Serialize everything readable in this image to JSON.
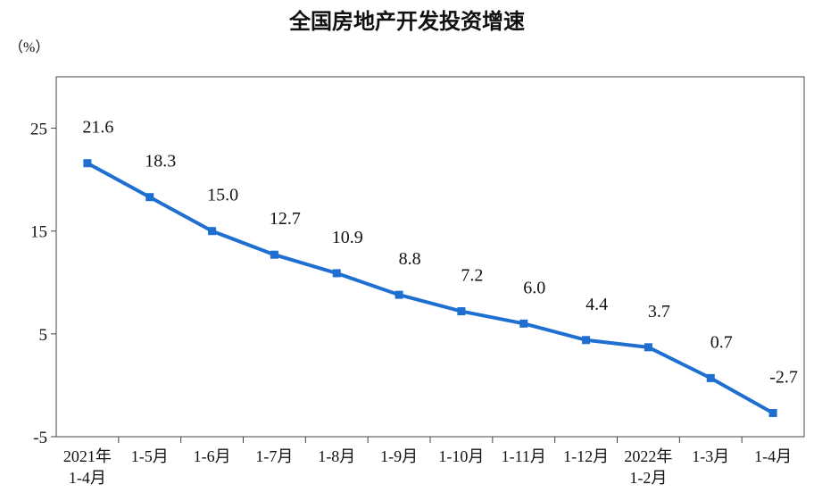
{
  "chart_data": {
    "type": "line",
    "title": "全国房地产开发投资增速",
    "unit_label": "（%）",
    "xlabel": "",
    "ylabel": "",
    "ylim": [
      -5,
      30
    ],
    "yticks": [
      -5,
      5,
      15,
      25
    ],
    "grid": false,
    "legend": "none",
    "categories": [
      [
        "2021年",
        "1-4月"
      ],
      [
        "1-5月"
      ],
      [
        "1-6月"
      ],
      [
        "1-7月"
      ],
      [
        "1-8月"
      ],
      [
        "1-9月"
      ],
      [
        "1-10月"
      ],
      [
        "1-11月"
      ],
      [
        "1-12月"
      ],
      [
        "2022年",
        "1-2月"
      ],
      [
        "1-3月"
      ],
      [
        "1-4月"
      ]
    ],
    "values": [
      21.6,
      18.3,
      15.0,
      12.7,
      10.9,
      8.8,
      7.2,
      6.0,
      4.4,
      3.7,
      0.7,
      -2.7
    ],
    "data_labels": [
      "21.6",
      "18.3",
      "15.0",
      "12.7",
      "10.9",
      "8.8",
      "7.2",
      "6.0",
      "4.4",
      "3.7",
      "0.7",
      "-2.7"
    ],
    "colors": {
      "line": "#1f6fd1",
      "marker": "#1f6fd1",
      "axis": "#444444"
    }
  }
}
